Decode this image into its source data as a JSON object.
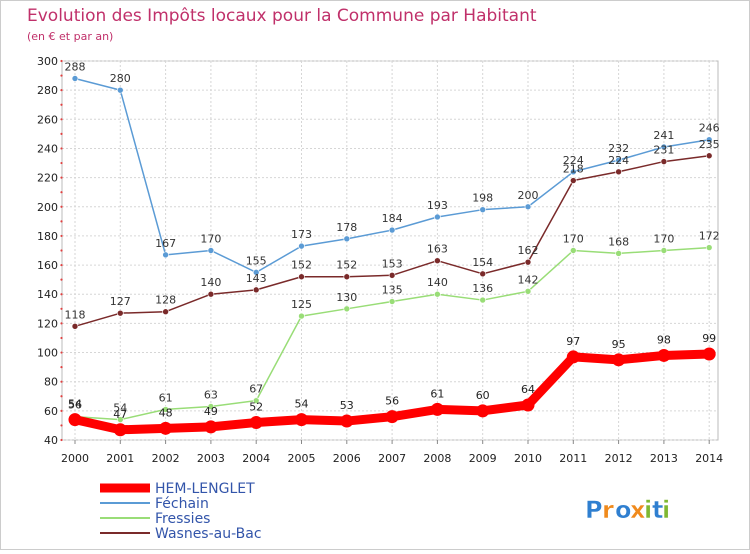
{
  "chart_data": {
    "type": "line",
    "title": "Evolution des Impôts locaux pour la Commune par Habitant",
    "subtitle": "(en € et par an)",
    "xlabel": "",
    "ylabel": "",
    "ylim": [
      40,
      300
    ],
    "yticks": [
      40,
      60,
      80,
      100,
      120,
      140,
      160,
      180,
      200,
      220,
      240,
      260,
      280,
      300
    ],
    "grid": true,
    "legend_position": "bottom-left",
    "categories": [
      "2000",
      "2001",
      "2002",
      "2003",
      "2004",
      "2005",
      "2006",
      "2007",
      "2008",
      "2009",
      "2010",
      "2011",
      "2012",
      "2013",
      "2014"
    ],
    "series": [
      {
        "name": "Féchain",
        "color": "#5b9bd5",
        "values": [
          288,
          280,
          167,
          170,
          155,
          173,
          178,
          184,
          193,
          198,
          200,
          224,
          232,
          241,
          246
        ]
      },
      {
        "name": "Fressies",
        "color": "#99dd77",
        "values": [
          56,
          54,
          61,
          63,
          67,
          125,
          130,
          135,
          140,
          136,
          142,
          170,
          168,
          170,
          172
        ]
      },
      {
        "name": "Wasnes-au-Bac",
        "color": "#7a2a2a",
        "values": [
          118,
          127,
          128,
          140,
          143,
          152,
          152,
          153,
          163,
          154,
          162,
          218,
          224,
          231,
          235
        ]
      },
      {
        "name": "HEM-LENGLET",
        "color": "#ff0000",
        "values": [
          54,
          47,
          48,
          49,
          52,
          54,
          53,
          56,
          61,
          60,
          64,
          97,
          95,
          98,
          99
        ]
      }
    ]
  },
  "brand": "Proxiti"
}
